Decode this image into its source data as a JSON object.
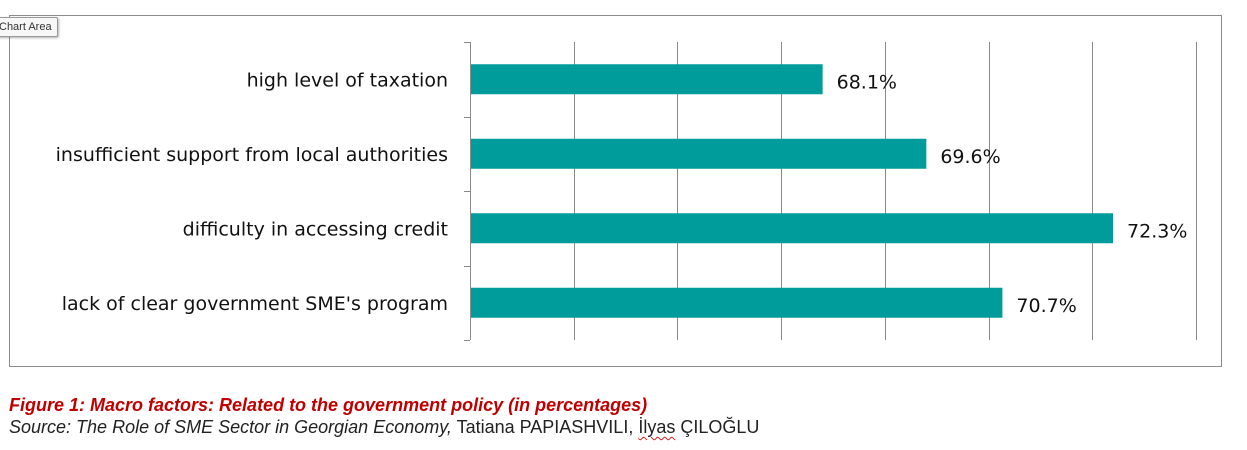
{
  "tooltip": "Chart Area",
  "chart_data": {
    "type": "bar",
    "orientation": "horizontal",
    "categories": [
      "high level of taxation",
      "insufficient support from local authorities",
      "difficulty in accessing credit",
      "lack of clear government SME's program"
    ],
    "values": [
      68.1,
      69.6,
      72.3,
      70.7
    ],
    "value_labels": [
      "68.1%",
      "69.6%",
      "72.3%",
      "70.7%"
    ],
    "xlim": [
      63,
      73.5
    ],
    "gridlines": "vertical",
    "legend": "none",
    "bar_color": "#009b9b"
  },
  "caption": {
    "title": "Figure 1: Macro factors: Related to the government policy (in percentages)",
    "source_prefix": "Source: ",
    "source_work": "The Role of SME Sector in Georgian Economy,",
    "source_authors": " Tatiana PAPIASHVILI, ",
    "source_author2": "İlyas",
    "source_author2_rest": " ÇILOĞLU"
  }
}
